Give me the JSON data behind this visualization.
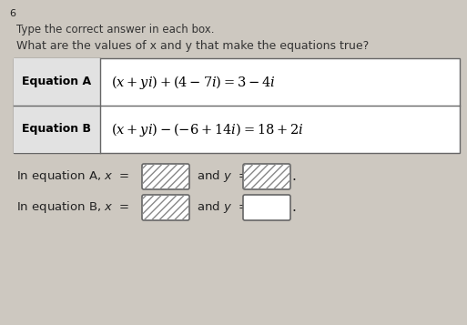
{
  "page_number": "6",
  "instruction": "Type the correct answer in each box.",
  "question": "What are the values of x and y that make the equations true?",
  "eq_a_label": "Equation A",
  "eq_b_label": "Equation B",
  "bg_color": "#cdc8c0",
  "table_bg": "#ffffff",
  "header_bg": "#e0e0e0",
  "figsize": [
    5.13,
    3.57
  ],
  "dpi": 100
}
